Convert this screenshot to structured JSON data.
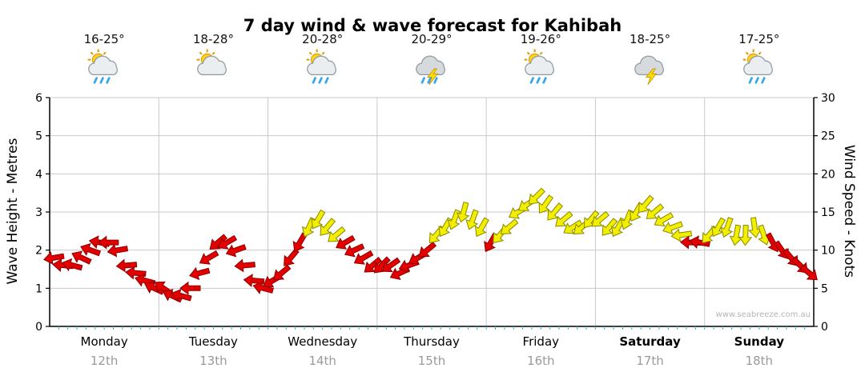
{
  "title": "7 day wind & wave forecast for Kahibah",
  "watermark": "www.seabreeze.com.au",
  "icon_colors": {
    "sun": "#ffd21e",
    "sun_ray": "#e39b00",
    "cloud": "#ebeef0",
    "storm_cloud": "#d6dadd",
    "bolt": "#ffdf00",
    "rain": "#38a6e8"
  },
  "days": [
    {
      "name": "Monday",
      "date": "12th",
      "temp": "16-25°",
      "icon": "sun-cloud-rain",
      "bold": false
    },
    {
      "name": "Tuesday",
      "date": "13th",
      "temp": "18-28°",
      "icon": "sun-cloud",
      "bold": false
    },
    {
      "name": "Wednesday",
      "date": "14th",
      "temp": "20-28°",
      "icon": "sun-cloud-rain",
      "bold": false
    },
    {
      "name": "Thursday",
      "date": "15th",
      "temp": "20-29°",
      "icon": "storm-rain",
      "bold": false
    },
    {
      "name": "Friday",
      "date": "16th",
      "temp": "19-26°",
      "icon": "sun-cloud-rain",
      "bold": false
    },
    {
      "name": "Saturday",
      "date": "17th",
      "temp": "18-25°",
      "icon": "storm",
      "bold": true
    },
    {
      "name": "Sunday",
      "date": "18th",
      "temp": "17-25°",
      "icon": "sun-cloud-rain",
      "bold": true
    }
  ],
  "chart_data": {
    "type": "wind-arrow-series",
    "title": "7 day wind & wave forecast for Kahibah",
    "left_axis": {
      "label": "Wave Height - Metres",
      "ticks": [
        0,
        1,
        2,
        3,
        4,
        5,
        6
      ],
      "range": [
        0,
        6
      ]
    },
    "right_axis": {
      "label": "Wind Speed - Knots",
      "ticks": [
        0,
        5,
        10,
        15,
        20,
        25,
        30
      ],
      "range": [
        0,
        30
      ]
    },
    "grid": true,
    "grid_color": "#c9c9c9",
    "axis_color": "#000000",
    "minor_tick_color": "#2fb6c9",
    "arrow_low": {
      "fill": "#e30000",
      "stroke": "#8c0000"
    },
    "arrow_high": {
      "fill": "#f2ee00",
      "stroke": "#8c8800"
    },
    "threshold_knots": 12,
    "samples_per_day": 12,
    "series": [
      {
        "day": "Monday",
        "knots": [
          9,
          8,
          8,
          9,
          10,
          11,
          11,
          10,
          8,
          7,
          6,
          5
        ],
        "dirs": [
          170,
          185,
          195,
          205,
          200,
          190,
          180,
          170,
          175,
          185,
          195,
          205
        ]
      },
      {
        "day": "Tuesday",
        "knots": [
          5,
          4,
          4,
          5,
          7,
          9,
          11,
          11,
          10,
          8,
          6,
          5
        ],
        "dirs": [
          215,
          205,
          195,
          180,
          165,
          150,
          140,
          150,
          160,
          175,
          185,
          195
        ]
      },
      {
        "day": "Wednesday",
        "knots": [
          6,
          7,
          9,
          11,
          13,
          14,
          13,
          12,
          11,
          10,
          9,
          8
        ],
        "dirs": [
          150,
          140,
          130,
          120,
          115,
          120,
          130,
          140,
          150,
          155,
          150,
          140
        ]
      },
      {
        "day": "Thursday",
        "knots": [
          8,
          8,
          7,
          8,
          9,
          10,
          12,
          13,
          14,
          15,
          14,
          13
        ],
        "dirs": [
          135,
          145,
          155,
          160,
          150,
          140,
          130,
          120,
          110,
          105,
          110,
          120
        ]
      },
      {
        "day": "Friday",
        "knots": [
          11,
          12,
          13,
          15,
          16,
          17,
          16,
          15,
          14,
          13,
          13,
          14
        ],
        "dirs": [
          120,
          130,
          140,
          150,
          145,
          135,
          125,
          130,
          140,
          148,
          140,
          130
        ]
      },
      {
        "day": "Saturday",
        "knots": [
          14,
          13,
          13,
          14,
          15,
          16,
          15,
          14,
          13,
          12,
          11,
          11
        ],
        "dirs": [
          140,
          130,
          120,
          112,
          120,
          130,
          140,
          150,
          160,
          172,
          182,
          190
        ]
      },
      {
        "day": "Sunday",
        "knots": [
          12,
          13,
          13,
          12,
          12,
          13,
          12,
          11,
          10,
          9,
          8,
          7
        ],
        "dirs": [
          130,
          120,
          110,
          100,
          92,
          82,
          72,
          62,
          55,
          50,
          45,
          40
        ]
      }
    ]
  }
}
